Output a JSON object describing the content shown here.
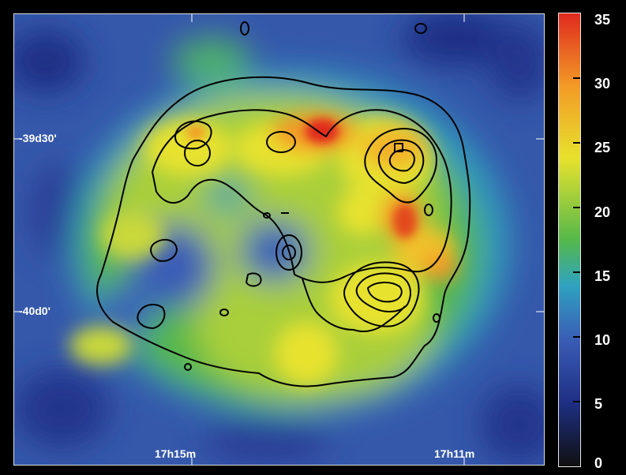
{
  "map": {
    "dec_ticks": [
      "-39d30'",
      "-40d0'"
    ],
    "ra_ticks": [
      "17h15m",
      "17h11m"
    ]
  },
  "colorbar": {
    "labels": [
      "35",
      "30",
      "25",
      "20",
      "15",
      "10",
      "5",
      "0"
    ],
    "min": 0,
    "max": 35
  },
  "colors": {
    "low": "#101010",
    "navy": "#1e2f84",
    "blue": "#3a5db6",
    "cyan": "#2fa3c0",
    "green": "#55b84a",
    "yellow": "#e7e22d",
    "orange": "#f39a26",
    "red": "#e02a1f",
    "contour": "#000000"
  }
}
